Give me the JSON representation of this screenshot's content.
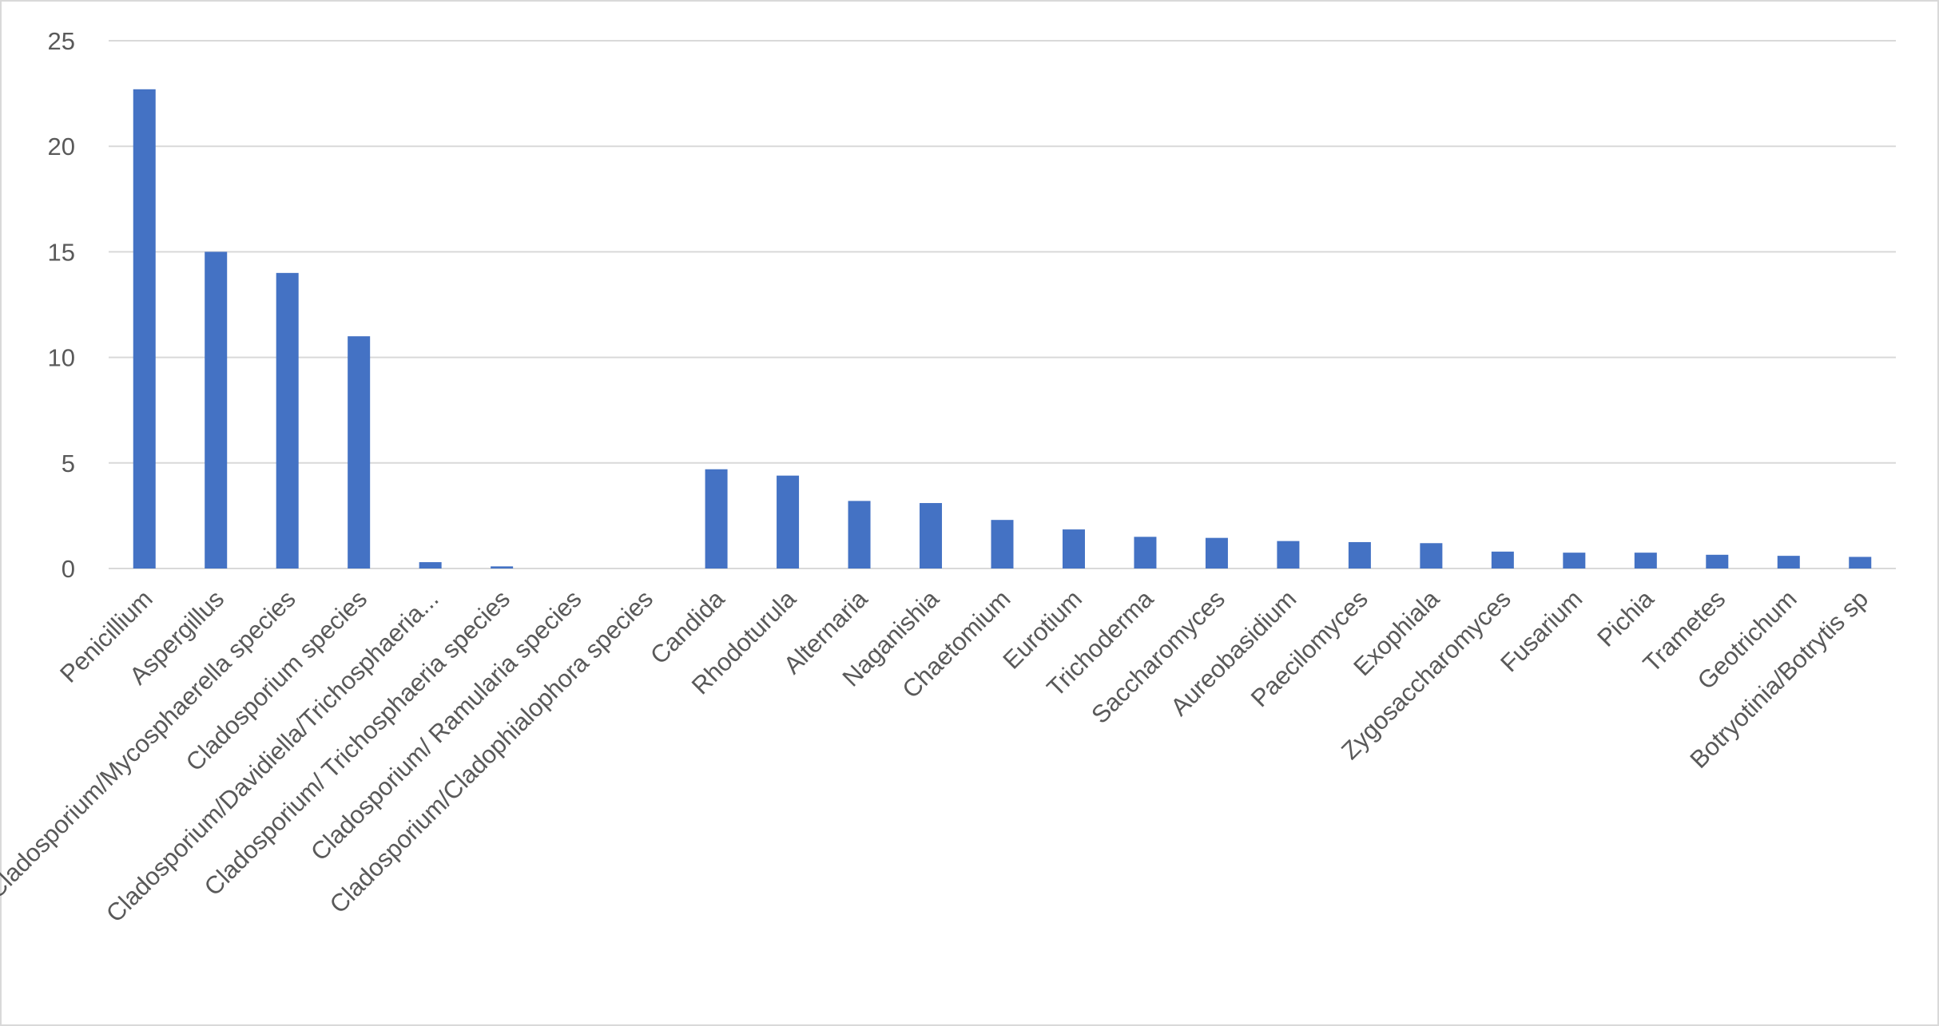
{
  "chart_data": {
    "type": "bar",
    "categories": [
      "Penicillium",
      "Aspergillus",
      "Cladosporium/Mycosphaerella species",
      "Cladosporium species",
      "Cladosporium/Davidiella/Trichosphaeria...",
      "Cladosporium/ Trichosphaeria species",
      "Cladosporium/ Ramularia species",
      "Cladosporium/Cladophialophora species",
      "Candida",
      "Rhodoturula",
      "Alternaria",
      "Naganishia",
      "Chaetomium",
      "Eurotium",
      "Trichoderma",
      "Saccharomyces",
      "Aureobasidium",
      "Paecilomyces",
      "Exophiala",
      "Zygosaccharomyces",
      "Fusarium",
      "Pichia",
      "Trametes",
      "Geotrichum",
      "Botryotinia/Botrytis sp"
    ],
    "values": [
      22.7,
      15,
      14,
      11,
      0.3,
      0.1,
      0,
      0,
      4.7,
      4.4,
      3.2,
      3.1,
      2.3,
      1.85,
      1.5,
      1.45,
      1.3,
      1.25,
      1.2,
      0.8,
      0.75,
      0.75,
      0.65,
      0.6,
      0.55
    ],
    "color": "#4472c4",
    "ylim": [
      0,
      25
    ],
    "yticks": [
      0,
      5,
      10,
      15,
      20,
      25
    ],
    "grid": true
  }
}
